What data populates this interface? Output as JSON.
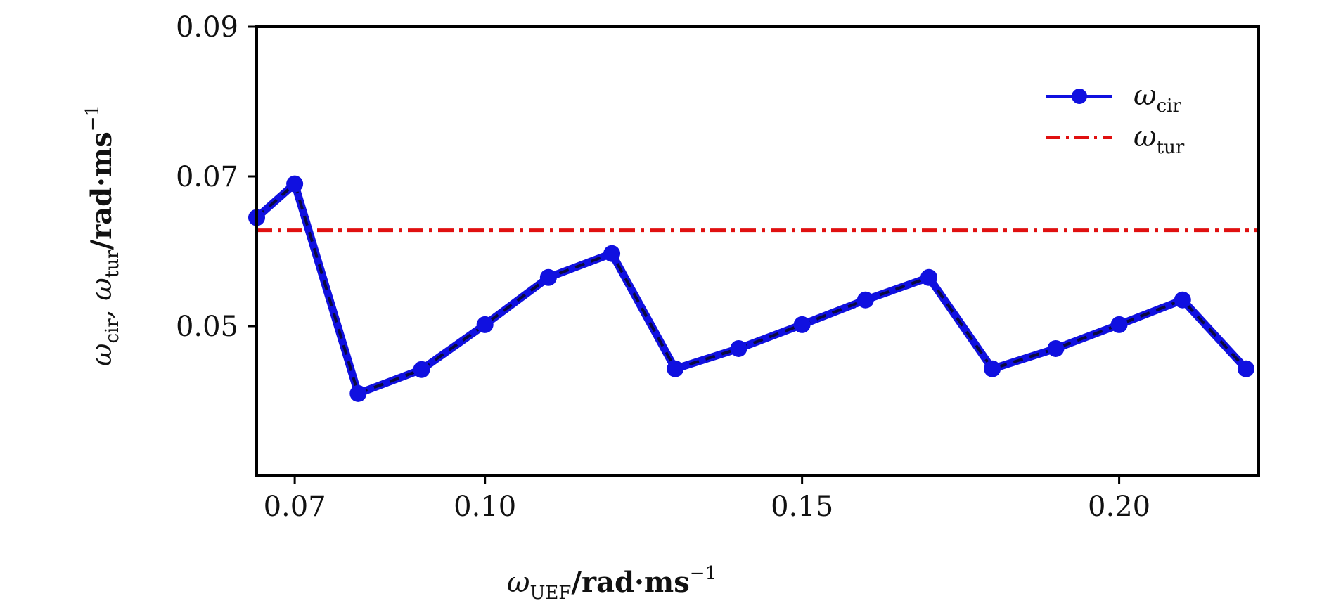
{
  "chart_data": {
    "type": "line",
    "title": "",
    "xlabel": {
      "sym": "ω",
      "sub": "UEF",
      "rest": "/rad·ms",
      "sup": "−1"
    },
    "ylabel": {
      "sym1": "ω",
      "sub1": "cir",
      "mid": ", ω",
      "sub2": "tur",
      "rest": "/rad·ms",
      "sup": "−1"
    },
    "xlim": [
      0.064,
      0.222
    ],
    "ylim": [
      0.03,
      0.09
    ],
    "xticks": [
      {
        "value": 0.07,
        "label": "0.07"
      },
      {
        "value": 0.1,
        "label": "0.10"
      },
      {
        "value": 0.15,
        "label": "0.15"
      },
      {
        "value": 0.2,
        "label": "0.20"
      }
    ],
    "yticks": [
      {
        "value": 0.05,
        "label": "0.05"
      },
      {
        "value": 0.07,
        "label": "0.07"
      },
      {
        "value": 0.09,
        "label": "0.09"
      }
    ],
    "legend_position": "top-right",
    "series": [
      {
        "name": "ω_cir",
        "legend_sym": "ω",
        "legend_sub": "cir",
        "color": "#1010e0",
        "style": "dashed-markers",
        "x": [
          0.064,
          0.07,
          0.08,
          0.09,
          0.1,
          0.11,
          0.12,
          0.13,
          0.14,
          0.15,
          0.16,
          0.17,
          0.18,
          0.19,
          0.2,
          0.21,
          0.22
        ],
        "y": [
          0.0645,
          0.069,
          0.041,
          0.0442,
          0.0502,
          0.0565,
          0.0597,
          0.0443,
          0.047,
          0.0502,
          0.0535,
          0.0565,
          0.0443,
          0.047,
          0.0502,
          0.0535,
          0.0443
        ]
      },
      {
        "name": "ω_tur",
        "legend_sym": "ω",
        "legend_sub": "tur",
        "color": "#e01010",
        "style": "dashdot",
        "x": [
          0.064,
          0.222
        ],
        "y": [
          0.0628,
          0.0628
        ]
      }
    ]
  }
}
